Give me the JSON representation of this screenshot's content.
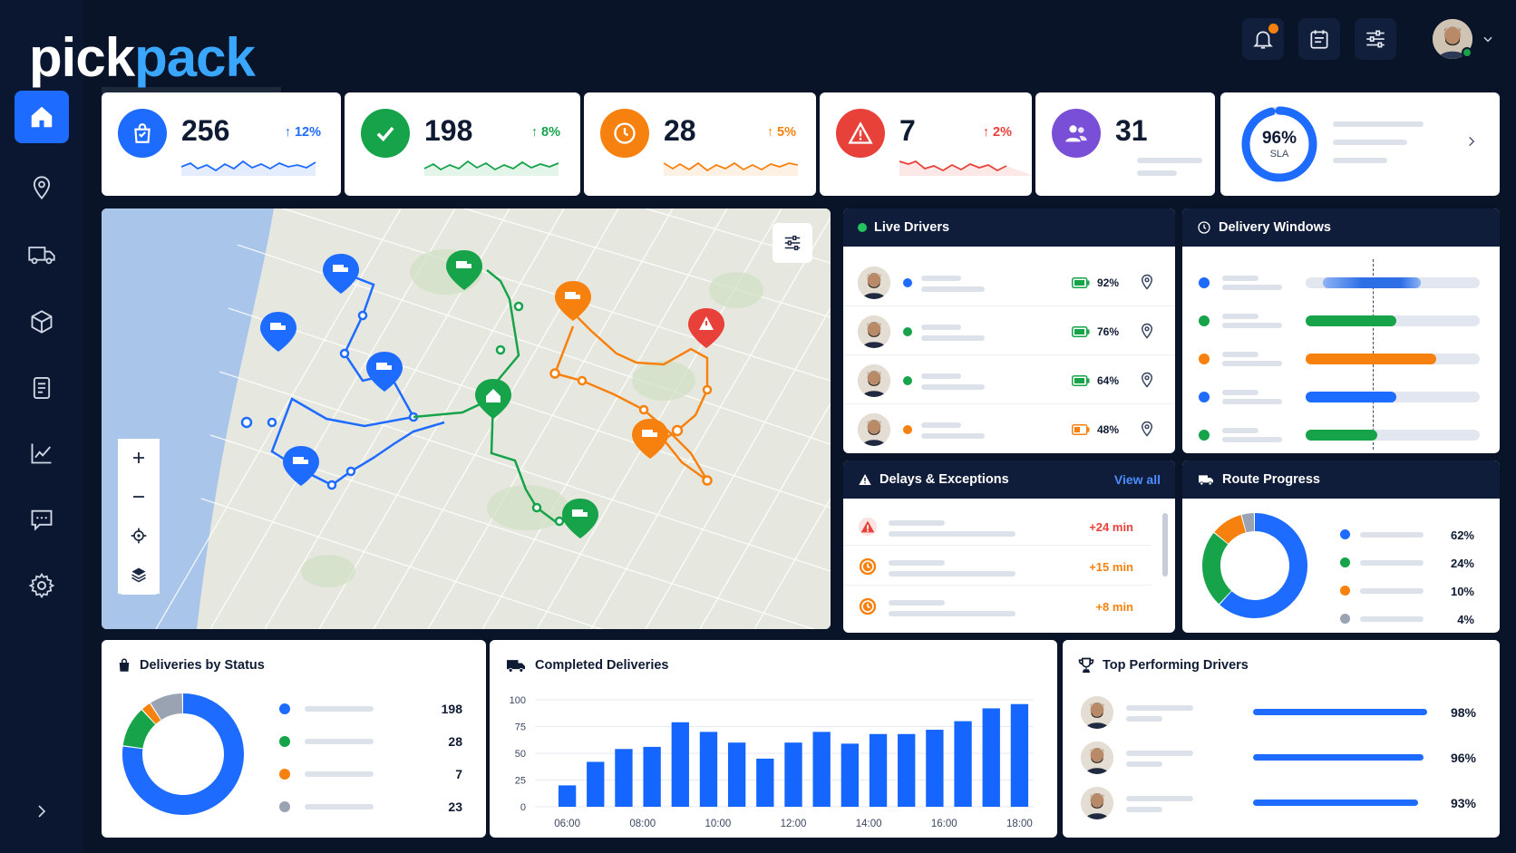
{
  "brand": {
    "logo_text_left": "pick",
    "logo_text_right": "pack"
  },
  "colors": {
    "blue": "#1e6bff",
    "green": "#16a34a",
    "orange": "#f7810f",
    "red": "#e8413a",
    "purple": "#7a4fd8",
    "gray": "#9aa3b2"
  },
  "header": {
    "icons": [
      "bell-icon",
      "calendar-icon",
      "sliders-icon"
    ],
    "has_notification": true
  },
  "sidebar": {
    "items": [
      "home-icon",
      "location-pin-icon",
      "truck-icon",
      "box-icon",
      "report-icon",
      "chart-icon",
      "chat-icon",
      "settings-icon"
    ],
    "active": 0
  },
  "kpis": [
    {
      "value": "256",
      "delta": "↑ 12%",
      "color": "#1e6bff",
      "icon": "shopping-bag-icon"
    },
    {
      "value": "198",
      "delta": "↑ 8%",
      "color": "#16a34a",
      "icon": "check-icon"
    },
    {
      "value": "28",
      "delta": "↑ 5%",
      "color": "#f7810f",
      "icon": "clock-icon"
    },
    {
      "value": "7",
      "delta": "↑ 2%",
      "color": "#e8413a",
      "icon": "warning-icon"
    },
    {
      "value": "31",
      "delta": "",
      "color": "#7a4fd8",
      "icon": "users-icon"
    }
  ],
  "sla": {
    "value": "96%",
    "label": "SLA",
    "fraction": 0.96
  },
  "live_drivers": {
    "title": "Live Drivers",
    "rows": [
      {
        "battery": "92%",
        "status": "#1e6bff"
      },
      {
        "battery": "76%",
        "status": "#16a34a"
      },
      {
        "battery": "64%",
        "status": "#16a34a"
      },
      {
        "battery": "48%",
        "status": "#f7810f"
      }
    ]
  },
  "delivery_windows": {
    "title": "Delivery Windows",
    "rows": [
      {
        "color": "#1e6bff",
        "start": 0.1,
        "end": 0.66,
        "light": true
      },
      {
        "color": "#16a34a",
        "start": 0.0,
        "end": 0.52,
        "light": false
      },
      {
        "color": "#f7810f",
        "start": 0.0,
        "end": 0.75,
        "light": false
      },
      {
        "color": "#1e6bff",
        "start": 0.0,
        "end": 0.52,
        "light": false
      },
      {
        "color": "#16a34a",
        "start": 0.0,
        "end": 0.41,
        "light": false
      }
    ]
  },
  "delays": {
    "title": "Delays & Exceptions",
    "view_all": "View all",
    "rows": [
      {
        "value": "+24 min",
        "icon": "warning-icon",
        "color": "#e8413a"
      },
      {
        "value": "+15 min",
        "icon": "clock-icon",
        "color": "#f7810f"
      },
      {
        "value": "+8 min",
        "icon": "clock-icon",
        "color": "#f7810f"
      }
    ]
  },
  "route_progress": {
    "title": "Route Progress",
    "items": [
      {
        "value": "62%",
        "color": "#1e6bff"
      },
      {
        "value": "24%",
        "color": "#16a34a"
      },
      {
        "value": "10%",
        "color": "#f7810f"
      },
      {
        "value": "4%",
        "color": "#9aa3b2"
      }
    ]
  },
  "deliveries_by_status": {
    "title": "Deliveries by Status",
    "items": [
      {
        "value": "198",
        "color": "#1e6bff"
      },
      {
        "value": "28",
        "color": "#16a34a"
      },
      {
        "value": "7",
        "color": "#f7810f"
      },
      {
        "value": "23",
        "color": "#9aa3b2"
      }
    ]
  },
  "completed_deliveries": {
    "title": "Completed Deliveries"
  },
  "chart_data": {
    "type": "bar",
    "title": "Completed Deliveries",
    "x_tick_labels": [
      "06:00",
      "08:00",
      "10:00",
      "12:00",
      "14:00",
      "16:00",
      "18:00"
    ],
    "y_tick_labels": [
      "0",
      "25",
      "50",
      "75",
      "100"
    ],
    "ylim": [
      0,
      100
    ],
    "values": [
      20,
      42,
      54,
      56,
      79,
      70,
      60,
      45,
      60,
      70,
      59,
      68,
      68,
      72,
      80,
      92,
      96
    ],
    "color": "#1565ff",
    "grid": true
  },
  "top_drivers": {
    "title": "Top Performing Drivers",
    "rows": [
      {
        "value": "98%",
        "fraction": 0.98
      },
      {
        "value": "96%",
        "fraction": 0.96
      },
      {
        "value": "93%",
        "fraction": 0.93
      }
    ]
  }
}
